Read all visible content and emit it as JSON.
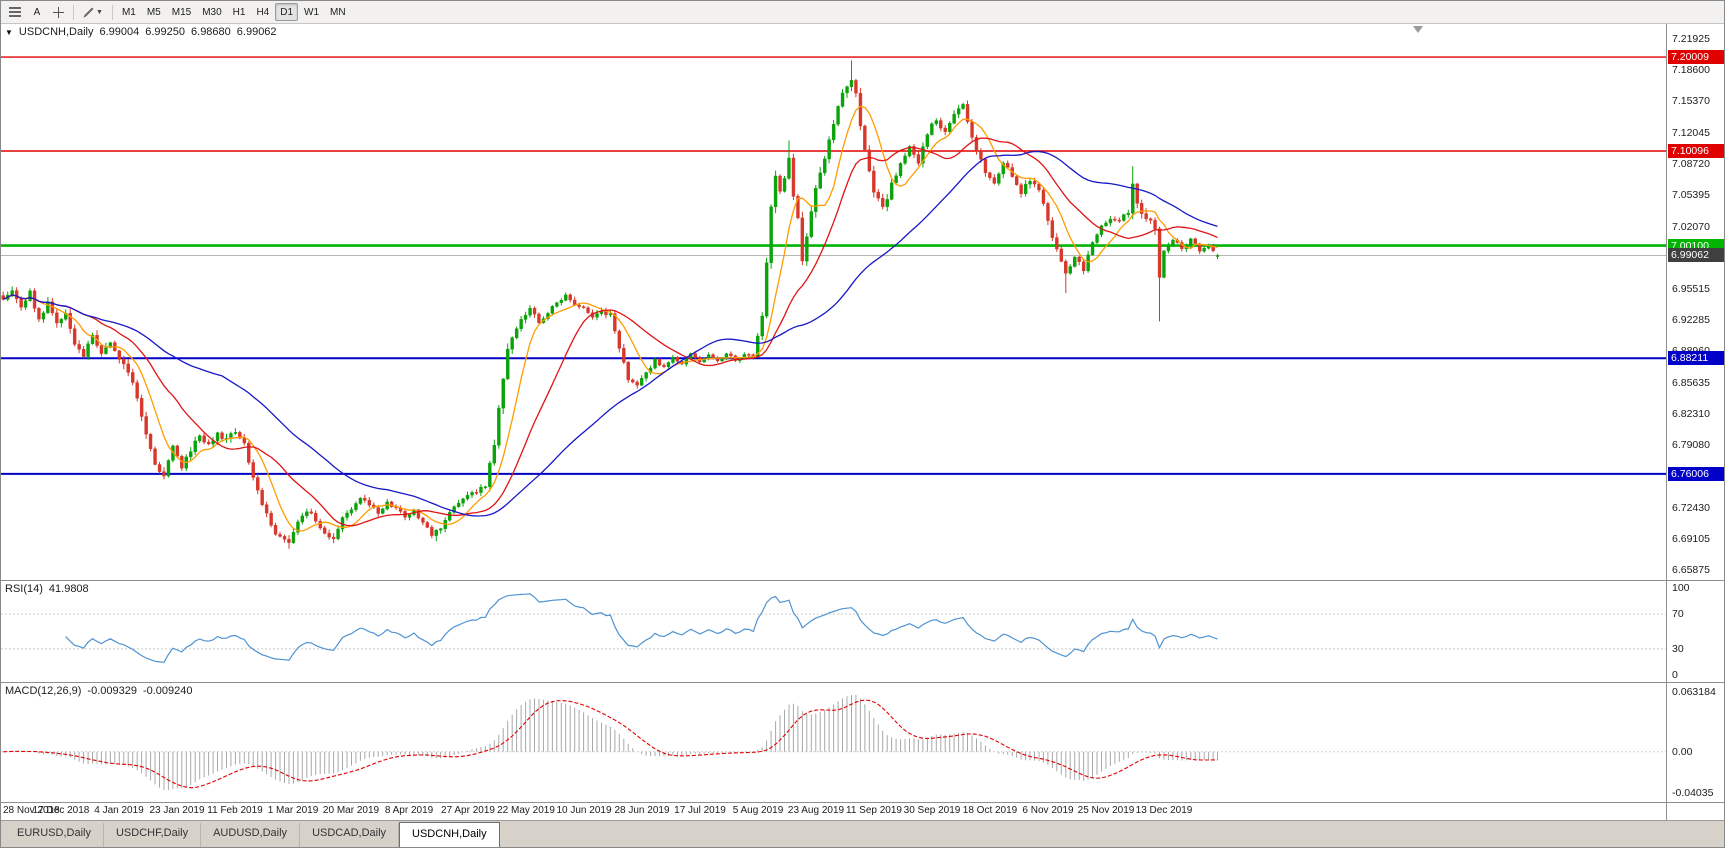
{
  "toolbar": {
    "icons": [
      {
        "name": "charts-list-icon"
      },
      {
        "name": "text-tool",
        "label": "A"
      },
      {
        "name": "crosshair-icon"
      },
      {
        "name": "drawing-tools-icon",
        "caret": "▼"
      }
    ],
    "timeframes": [
      "M1",
      "M5",
      "M15",
      "M30",
      "H1",
      "H4",
      "D1",
      "W1",
      "MN"
    ],
    "active_timeframe": "D1"
  },
  "chart": {
    "one_click_glyph": "▼",
    "symbol_label": "USDCNH,Daily",
    "ohlc": {
      "open": "6.99004",
      "high": "6.99250",
      "low": "6.98680",
      "close": "6.99062"
    },
    "current_price_label": "6.99062"
  },
  "chart_data": {
    "type": "candlestick",
    "symbol": "USDCNH",
    "timeframe": "Daily",
    "bars_count": 273,
    "up_color": "#0ba30b",
    "down_color": "#d8382c",
    "close_anchors": [
      [
        0,
        6.946
      ],
      [
        2,
        6.956
      ],
      [
        4,
        6.938
      ],
      [
        6,
        6.952
      ],
      [
        8,
        6.922
      ],
      [
        10,
        6.94
      ],
      [
        12,
        6.918
      ],
      [
        14,
        6.93
      ],
      [
        16,
        6.898
      ],
      [
        18,
        6.885
      ],
      [
        20,
        6.905
      ],
      [
        22,
        6.89
      ],
      [
        24,
        6.9
      ],
      [
        26,
        6.878
      ],
      [
        28,
        6.868
      ],
      [
        30,
        6.842
      ],
      [
        32,
        6.8
      ],
      [
        34,
        6.772
      ],
      [
        36,
        6.758
      ],
      [
        38,
        6.788
      ],
      [
        40,
        6.768
      ],
      [
        42,
        6.786
      ],
      [
        44,
        6.8
      ],
      [
        46,
        6.792
      ],
      [
        48,
        6.803
      ],
      [
        50,
        6.795
      ],
      [
        52,
        6.806
      ],
      [
        54,
        6.79
      ],
      [
        56,
        6.755
      ],
      [
        58,
        6.728
      ],
      [
        60,
        6.705
      ],
      [
        62,
        6.692
      ],
      [
        64,
        6.686
      ],
      [
        66,
        6.708
      ],
      [
        68,
        6.722
      ],
      [
        70,
        6.712
      ],
      [
        72,
        6.698
      ],
      [
        74,
        6.69
      ],
      [
        76,
        6.714
      ],
      [
        78,
        6.722
      ],
      [
        80,
        6.734
      ],
      [
        82,
        6.728
      ],
      [
        84,
        6.718
      ],
      [
        86,
        6.73
      ],
      [
        88,
        6.724
      ],
      [
        90,
        6.714
      ],
      [
        92,
        6.722
      ],
      [
        94,
        6.708
      ],
      [
        96,
        6.696
      ],
      [
        98,
        6.702
      ],
      [
        100,
        6.72
      ],
      [
        102,
        6.73
      ],
      [
        104,
        6.736
      ],
      [
        106,
        6.742
      ],
      [
        108,
        6.748
      ],
      [
        110,
        6.79
      ],
      [
        111,
        6.83
      ],
      [
        112,
        6.862
      ],
      [
        113,
        6.89
      ],
      [
        114,
        6.906
      ],
      [
        116,
        6.922
      ],
      [
        118,
        6.936
      ],
      [
        120,
        6.92
      ],
      [
        122,
        6.93
      ],
      [
        124,
        6.94
      ],
      [
        126,
        6.948
      ],
      [
        128,
        6.94
      ],
      [
        130,
        6.936
      ],
      [
        132,
        6.926
      ],
      [
        134,
        6.932
      ],
      [
        136,
        6.928
      ],
      [
        138,
        6.895
      ],
      [
        140,
        6.862
      ],
      [
        142,
        6.852
      ],
      [
        144,
        6.866
      ],
      [
        146,
        6.88
      ],
      [
        148,
        6.872
      ],
      [
        150,
        6.884
      ],
      [
        152,
        6.876
      ],
      [
        154,
        6.886
      ],
      [
        156,
        6.878
      ],
      [
        158,
        6.886
      ],
      [
        160,
        6.879
      ],
      [
        162,
        6.887
      ],
      [
        164,
        6.88
      ],
      [
        166,
        6.886
      ],
      [
        168,
        6.884
      ],
      [
        170,
        6.93
      ],
      [
        171,
        6.985
      ],
      [
        172,
        7.04
      ],
      [
        173,
        7.07
      ],
      [
        174,
        7.055
      ],
      [
        175,
        7.075
      ],
      [
        176,
        7.09
      ],
      [
        177,
        7.05
      ],
      [
        178,
        7.03
      ],
      [
        179,
        6.985
      ],
      [
        180,
        7.01
      ],
      [
        182,
        7.06
      ],
      [
        184,
        7.09
      ],
      [
        186,
        7.13
      ],
      [
        188,
        7.16
      ],
      [
        190,
        7.178
      ],
      [
        191,
        7.16
      ],
      [
        193,
        7.1
      ],
      [
        195,
        7.06
      ],
      [
        197,
        7.04
      ],
      [
        199,
        7.065
      ],
      [
        201,
        7.09
      ],
      [
        203,
        7.105
      ],
      [
        205,
        7.09
      ],
      [
        207,
        7.12
      ],
      [
        209,
        7.135
      ],
      [
        211,
        7.12
      ],
      [
        213,
        7.14
      ],
      [
        215,
        7.148
      ],
      [
        216,
        7.13
      ],
      [
        218,
        7.1
      ],
      [
        220,
        7.08
      ],
      [
        222,
        7.065
      ],
      [
        224,
        7.088
      ],
      [
        226,
        7.075
      ],
      [
        228,
        7.058
      ],
      [
        230,
        7.07
      ],
      [
        232,
        7.058
      ],
      [
        234,
        7.028
      ],
      [
        236,
        6.995
      ],
      [
        238,
        6.972
      ],
      [
        240,
        6.99
      ],
      [
        242,
        6.975
      ],
      [
        244,
        7.005
      ],
      [
        246,
        7.022
      ],
      [
        248,
        7.03
      ],
      [
        250,
        7.026
      ],
      [
        252,
        7.038
      ],
      [
        253,
        7.065
      ],
      [
        254,
        7.045
      ],
      [
        256,
        7.03
      ],
      [
        258,
        7.02
      ],
      [
        259,
        6.965
      ],
      [
        260,
        6.992
      ],
      [
        262,
        7.008
      ],
      [
        264,
        6.998
      ],
      [
        266,
        7.008
      ],
      [
        268,
        6.996
      ],
      [
        270,
        7.002
      ],
      [
        272,
        6.9906
      ]
    ],
    "vol_anchors": [
      [
        0,
        0.0055
      ],
      [
        26,
        0.007
      ],
      [
        40,
        0.006
      ],
      [
        56,
        0.006
      ],
      [
        66,
        0.005
      ],
      [
        92,
        0.004
      ],
      [
        108,
        0.005
      ],
      [
        111,
        0.009
      ],
      [
        116,
        0.005
      ],
      [
        130,
        0.004
      ],
      [
        140,
        0.006
      ],
      [
        146,
        0.0028
      ],
      [
        168,
        0.003
      ],
      [
        171,
        0.012
      ],
      [
        178,
        0.009
      ],
      [
        186,
        0.008
      ],
      [
        196,
        0.007
      ],
      [
        208,
        0.006
      ],
      [
        222,
        0.005
      ],
      [
        234,
        0.006
      ],
      [
        248,
        0.004
      ],
      [
        253,
        0.008
      ],
      [
        259,
        0.01
      ],
      [
        262,
        0.004
      ],
      [
        272,
        0.003
      ]
    ],
    "wick_spikes": [
      {
        "i": 64,
        "low": 6.681
      },
      {
        "i": 74,
        "low": 6.687
      },
      {
        "i": 97,
        "low": 6.689
      },
      {
        "i": 176,
        "high": 7.112
      },
      {
        "i": 190,
        "high": 7.1965
      },
      {
        "i": 238,
        "low": 6.951
      },
      {
        "i": 253,
        "high": 7.085
      },
      {
        "i": 259,
        "low": 6.921
      }
    ],
    "last_bar": {
      "open": 6.99004,
      "high": 6.9925,
      "low": 6.9868,
      "close": 6.99062
    },
    "moving_averages": [
      {
        "period": 8,
        "color": "#ff9c00"
      },
      {
        "period": 20,
        "color": "#e01414"
      },
      {
        "period": 50,
        "color": "#1818c8"
      }
    ],
    "hlines": [
      {
        "price": 7.20009,
        "label": "7.20009",
        "color": "#e00000",
        "width": 1.4
      },
      {
        "price": 7.10096,
        "label": "7.10096",
        "color": "#e00000",
        "width": 1.4
      },
      {
        "price": 7.001,
        "label": "7.00100",
        "color": "#00b400",
        "width": 2.6
      },
      {
        "price": 6.88211,
        "label": "6.88211",
        "color": "#0000c8",
        "width": 2
      },
      {
        "price": 6.76006,
        "label": "6.76006",
        "color": "#0000c8",
        "width": 2
      }
    ],
    "current_price": 6.99062,
    "current_price_line_color": "#b6b6b6",
    "current_price_tag_bg": "#3f3f3f",
    "y_axis": {
      "top": 7.235,
      "bottom": 6.648,
      "labels": [
        "7.21925",
        "7.18600",
        "7.15370",
        "7.12045",
        "7.08720",
        "7.05395",
        "7.02070",
        "6.98745",
        "6.95515",
        "6.92285",
        "6.88960",
        "6.85635",
        "6.82310",
        "6.79080",
        "6.75760",
        "6.72430",
        "6.69105",
        "6.65875"
      ]
    },
    "x_labels": [
      "28 Nov 2018",
      "17 Dec 2018",
      "4 Jan 2019",
      "23 Jan 2019",
      "11 Feb 2019",
      "1 Mar 2019",
      "20 Mar 2019",
      "8 Apr 2019",
      "27 Apr 2019",
      "22 May 2019",
      "10 Jun 2019",
      "28 Jun 2019",
      "17 Jul 2019",
      "5 Aug 2019",
      "23 Aug 2019",
      "11 Sep 2019",
      "30 Sep 2019",
      "18 Oct 2019",
      "6 Nov 2019",
      "25 Nov 2019",
      "13 Dec 2019"
    ],
    "indicators": {
      "rsi": {
        "period": 14,
        "levels": [
          70,
          30
        ],
        "color": "#4f93d2",
        "scale_labels": [
          "100",
          "70",
          "30",
          "0"
        ],
        "scale_values": [
          100,
          70,
          30,
          0
        ]
      },
      "macd": {
        "fast": 12,
        "slow": 26,
        "signal": 9,
        "hist_color": "#a8a8a8",
        "signal_color": "#e00000",
        "scale_labels": [
          "0.063184",
          "0.00",
          "-0.04035"
        ]
      }
    }
  },
  "rsi": {
    "name": "RSI(14)",
    "value": "41.9808"
  },
  "macd": {
    "name": "MACD(12,26,9)",
    "value_main": "-0.009329",
    "value_signal": "-0.009240"
  },
  "tabs": {
    "items": [
      "EURUSD,Daily",
      "USDCHF,Daily",
      "AUDUSD,Daily",
      "USDCAD,Daily",
      "USDCNH,Daily"
    ],
    "active": "USDCNH,Daily"
  }
}
